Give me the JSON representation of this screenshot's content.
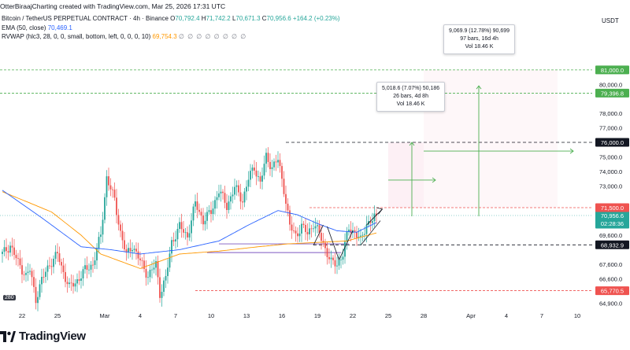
{
  "header": {
    "credit": "OtterBiraajCharting created with TradingView.com, Mar 25, 2026 17:31 UTC",
    "symbol": "Bitcoin / TetherUS PERPETUAL CONTRACT · 4h · Binance",
    "ohlc": {
      "o_label": "O",
      "o": "70,792.4",
      "h_label": "H",
      "h": "71,742.2",
      "l_label": "L",
      "l": "70,671.3",
      "c_label": "C",
      "c": "70,956.6",
      "change": "+164.2 (+0.23%)"
    },
    "ema": {
      "label": "EMA (50, close)",
      "value": "70,469.1"
    },
    "rvwap": {
      "label": "RVWAP (hlc3, 28, 0, 0, small, bottom, left, 0, 0, 0, 10)",
      "value": "69,754.3",
      "dots": "∅ ∅ ∅ ∅ ∅ ∅ ∅ ∅"
    }
  },
  "currency_label": "USDT",
  "axis_badge": "280",
  "measure_boxes": [
    {
      "line1": "9,069.9 (12.78%) 90,699",
      "line2": "97 bars, 16d 4h",
      "line3": "Vol 18.46 K"
    },
    {
      "line1": "5,018.6 (7.07%) 50,186",
      "line2": "26 bars, 4d 8h",
      "line3": "Vol 18.46 K"
    }
  ],
  "logo": {
    "text": "TradingView"
  },
  "colors": {
    "up": "#26a69a",
    "down": "#ef5350",
    "ema": "#2962ff",
    "vwap": "#ff9800",
    "target": "#4caf50",
    "resist": "#ef5350",
    "support": "#131722",
    "range_fill": "#f3e5f5"
  },
  "chart_data": {
    "type": "candlestick",
    "timeframe": "4h",
    "y_range": [
      64500,
      83000
    ],
    "y_ticks": [
      64900,
      65770.5,
      66600,
      67600,
      68932.9,
      69600,
      70956.6,
      71500,
      73000,
      74000,
      75000,
      76000,
      77000,
      78000,
      79396.8,
      80000,
      81000
    ],
    "y_tick_labels": [
      "64,900.0",
      "65,770.5",
      "66,600.0",
      "67,600.0",
      "68,932.9",
      "69,600.0",
      "70,956.6",
      "71,500.0",
      "73,000.0",
      "74,000.0",
      "75,000.0",
      "76,000.0",
      "77,000.0",
      "78,000.0",
      "79,396.8",
      "80,000.0",
      "81,000.0"
    ],
    "highlighted_levels": [
      {
        "value": 81000,
        "label": "81,000.0",
        "kind": "target"
      },
      {
        "value": 79396.8,
        "label": "79,396.8",
        "kind": "target"
      },
      {
        "value": 76000,
        "label": "76,000.0",
        "kind": "support"
      },
      {
        "value": 71500,
        "label": "71,500.0",
        "kind": "resist"
      },
      {
        "value": 70956.6,
        "label": "70,956.6",
        "kind": "last"
      },
      {
        "value": 68932.9,
        "label": "68,932.9",
        "kind": "support"
      },
      {
        "value": 65770.5,
        "label": "65,770.5",
        "kind": "resist"
      }
    ],
    "countdown": "02:28:36",
    "x_ticks": [
      {
        "label": "22",
        "bar": 0
      },
      {
        "label": "25",
        "bar": 18
      },
      {
        "label": "Mar",
        "bar": 42
      },
      {
        "label": "4",
        "bar": 60
      },
      {
        "label": "7",
        "bar": 78
      },
      {
        "label": "10",
        "bar": 96
      },
      {
        "label": "13",
        "bar": 114
      },
      {
        "label": "16",
        "bar": 132
      },
      {
        "label": "19",
        "bar": 150
      },
      {
        "label": "22",
        "bar": 168
      },
      {
        "label": "25",
        "bar": 186
      },
      {
        "label": "28",
        "bar": 204
      },
      {
        "label": "Apr",
        "bar": 228
      },
      {
        "label": "4",
        "bar": 246
      },
      {
        "label": "7",
        "bar": 264
      },
      {
        "label": "10",
        "bar": 282
      }
    ],
    "anchors": [
      [
        0,
        68300
      ],
      [
        4,
        68900
      ],
      [
        8,
        67700
      ],
      [
        12,
        66800
      ],
      [
        14,
        67200
      ],
      [
        17,
        65200
      ],
      [
        20,
        66500
      ],
      [
        24,
        67600
      ],
      [
        28,
        68300
      ],
      [
        30,
        67400
      ],
      [
        34,
        66000
      ],
      [
        37,
        66300
      ],
      [
        42,
        67200
      ],
      [
        46,
        67600
      ],
      [
        50,
        69600
      ],
      [
        53,
        73600
      ],
      [
        57,
        72000
      ],
      [
        60,
        69800
      ],
      [
        63,
        68200
      ],
      [
        66,
        68900
      ],
      [
        70,
        67800
      ],
      [
        74,
        66800
      ],
      [
        78,
        67600
      ],
      [
        80,
        65600
      ],
      [
        83,
        66600
      ],
      [
        86,
        69100
      ],
      [
        90,
        70200
      ],
      [
        94,
        69500
      ],
      [
        98,
        71800
      ],
      [
        102,
        70600
      ],
      [
        106,
        71200
      ],
      [
        110,
        72700
      ],
      [
        114,
        71600
      ],
      [
        118,
        72900
      ],
      [
        122,
        72000
      ],
      [
        125,
        73500
      ],
      [
        128,
        74300
      ],
      [
        131,
        73200
      ],
      [
        134,
        75000
      ],
      [
        137,
        74300
      ],
      [
        140,
        74800
      ],
      [
        143,
        72800
      ],
      [
        146,
        70200
      ],
      [
        149,
        69600
      ],
      [
        152,
        70200
      ],
      [
        155,
        69700
      ],
      [
        158,
        70400
      ],
      [
        161,
        69700
      ],
      [
        164,
        68700
      ],
      [
        167,
        67700
      ],
      [
        170,
        67600
      ],
      [
        173,
        68300
      ],
      [
        176,
        70100
      ],
      [
        179,
        69800
      ],
      [
        182,
        69200
      ],
      [
        185,
        70400
      ],
      [
        188,
        70600
      ],
      [
        190,
        70956.6
      ]
    ],
    "ema_anchors": [
      [
        0,
        72700
      ],
      [
        20,
        70800
      ],
      [
        40,
        68800
      ],
      [
        55,
        68600
      ],
      [
        70,
        68300
      ],
      [
        90,
        68600
      ],
      [
        110,
        69200
      ],
      [
        125,
        70300
      ],
      [
        140,
        71300
      ],
      [
        150,
        71000
      ],
      [
        160,
        70400
      ],
      [
        170,
        69900
      ],
      [
        180,
        69800
      ],
      [
        190,
        70469.1
      ]
    ],
    "vwap_anchors": [
      [
        0,
        72600
      ],
      [
        25,
        71200
      ],
      [
        40,
        69600
      ],
      [
        50,
        68300
      ],
      [
        60,
        67800
      ],
      [
        70,
        67300
      ],
      [
        90,
        68300
      ],
      [
        110,
        68500
      ],
      [
        130,
        68800
      ],
      [
        145,
        69000
      ],
      [
        160,
        69100
      ],
      [
        175,
        69200
      ],
      [
        190,
        69754.3
      ]
    ],
    "range_lines": [
      {
        "from_bar": 110,
        "to_bar": 176,
        "value": 69000
      },
      {
        "from_bar": 104,
        "to_bar": 172,
        "value": 68400
      }
    ]
  }
}
